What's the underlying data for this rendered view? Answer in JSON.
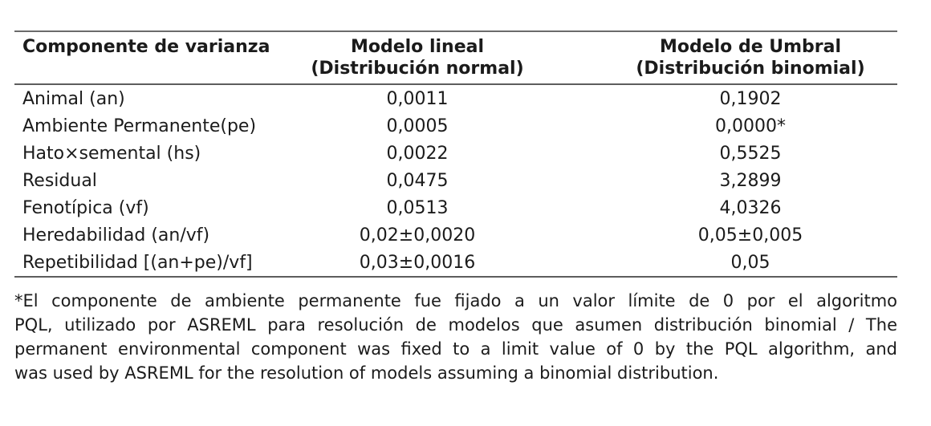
{
  "table": {
    "columns": [
      {
        "label": "Componente de varianza",
        "sublabel": ""
      },
      {
        "label": "Modelo lineal",
        "sublabel": "(Distribución normal)"
      },
      {
        "label": "Modelo de Umbral",
        "sublabel": "(Distribución binomial)"
      }
    ],
    "rows": [
      {
        "component": "Animal (an)",
        "linear": "0,0011",
        "threshold": "0,1902"
      },
      {
        "component": "Ambiente Permanente(pe)",
        "linear": "0,0005",
        "threshold": "0,0000*"
      },
      {
        "component": "Hato×semental (hs)",
        "linear": "0,0022",
        "threshold": "0,5525"
      },
      {
        "component": "Residual",
        "linear": "0,0475",
        "threshold": "3,2899"
      },
      {
        "component": "Fenotípica (vf)",
        "linear": "0,0513",
        "threshold": "4,0326"
      },
      {
        "component": "Heredabilidad (an/vf)",
        "linear": "0,02±0,0020",
        "threshold": "0,05±0,005"
      },
      {
        "component": "Repetibilidad [(an+pe)/vf]",
        "linear": "0,03±0,0016",
        "threshold": "0,05"
      }
    ]
  },
  "footnote": {
    "lines": [
      "*El componente de ambiente permanente fue fijado a un valor límite de 0 por el algoritmo",
      "PQL, utilizado por ASREML para resolución de modelos que asumen distribución binomial / The",
      "permanent environmental component was fixed to a limit value of 0 by the PQL algorithm, and",
      "was used by ASREML for the resolution of models assuming a binomial distribution."
    ]
  },
  "colors": {
    "background": "#ffffff",
    "text": "#1b1b1b",
    "rule": "#6b6b6b"
  }
}
